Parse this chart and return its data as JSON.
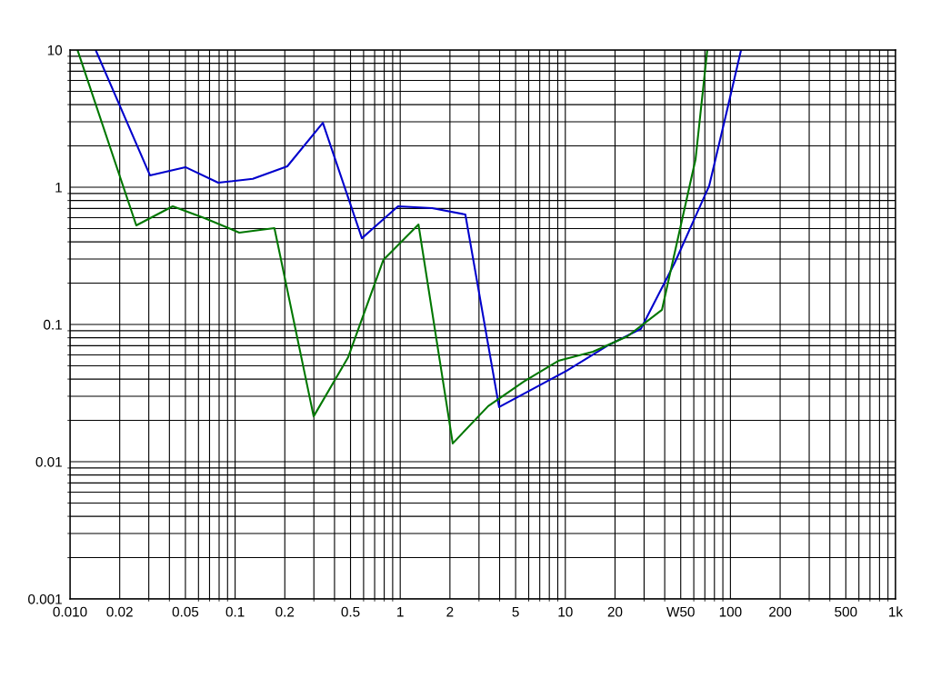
{
  "chart_data": {
    "type": "line",
    "log": "xy",
    "grid": true,
    "legend": false,
    "marker": "none",
    "line_style": "solid",
    "xlim": [
      0.01,
      1000
    ],
    "ylim": [
      0.001,
      10
    ],
    "xticks": [
      {
        "value": 0.01,
        "label": "0.010"
      },
      0.02,
      0.05,
      0.1,
      0.2,
      0.5,
      1,
      2,
      5,
      10,
      20,
      {
        "value": 50,
        "label": "W50"
      },
      100,
      200,
      500,
      {
        "value": 1000,
        "label": "1k"
      }
    ],
    "yticks": [
      0.001,
      0.01,
      0.1,
      1,
      10
    ],
    "series": [
      {
        "color": "#0000cc",
        "x": [
          0.0143,
          0.0305,
          0.05,
          0.079,
          0.128,
          0.207,
          0.34,
          0.586,
          0.97,
          1.56,
          2.48,
          3.97,
          10.2,
          18,
          28.7,
          45.9,
          74.3,
          95.7,
          116
        ],
        "values": [
          10,
          1.22,
          1.4,
          1.08,
          1.15,
          1.42,
          2.95,
          0.425,
          0.726,
          0.705,
          0.633,
          0.025,
          0.046,
          0.07,
          0.093,
          0.28,
          1.02,
          3.7,
          10
        ]
      },
      {
        "color": "#007700",
        "x": [
          0.0111,
          0.0252,
          0.0419,
          0.0653,
          0.106,
          0.173,
          0.299,
          0.484,
          0.79,
          1.29,
          2.08,
          3.41,
          5.6,
          9.06,
          14.7,
          23.8,
          38.5,
          61.5,
          72.4
        ],
        "values": [
          10,
          0.527,
          0.726,
          0.596,
          0.467,
          0.504,
          0.0214,
          0.0578,
          0.295,
          0.535,
          0.0136,
          0.0254,
          0.0383,
          0.0543,
          0.0633,
          0.082,
          0.128,
          1.6,
          10
        ]
      }
    ]
  }
}
